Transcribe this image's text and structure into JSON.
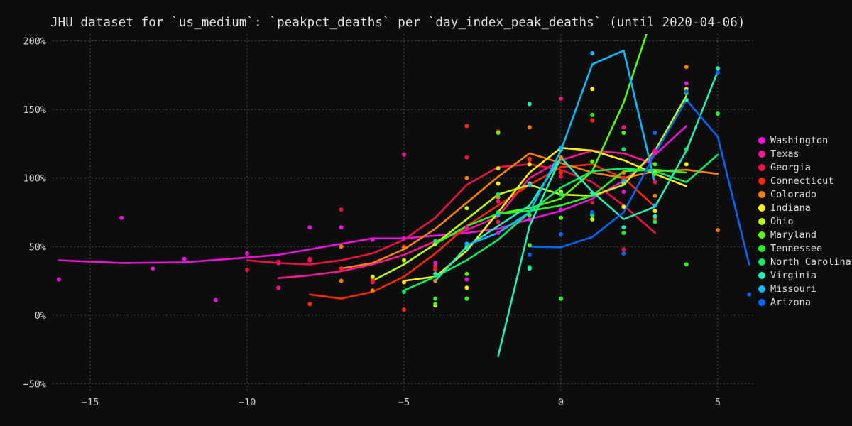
{
  "title": "JHU dataset for `us_medium`: `peakpct_deaths` per `day_index_peak_deaths` (until 2020-04-06)",
  "chart_data": {
    "type": "line",
    "title": "JHU dataset for `us_medium`: `peakpct_deaths` per `day_index_peak_deaths` (until 2020-04-06)",
    "xlabel": "",
    "ylabel": "",
    "xlim": [
      -16.2,
      6.2
    ],
    "ylim": [
      -55,
      205
    ],
    "x_ticks": [
      -15,
      -10,
      -5,
      0,
      5
    ],
    "x_tick_labels": [
      "−15",
      "−10",
      "−5",
      "0",
      "5"
    ],
    "y_ticks": [
      -50,
      0,
      50,
      100,
      150,
      200
    ],
    "y_tick_labels": [
      "−50%",
      "0%",
      "50%",
      "100%",
      "150%",
      "200%"
    ],
    "grid": true,
    "legend_position": "right",
    "series": [
      {
        "name": "Washington",
        "color": "#ee11dd",
        "line": [
          [
            -16,
            40
          ],
          [
            -14,
            38
          ],
          [
            -12,
            38.5
          ],
          [
            -10,
            42
          ],
          [
            -9,
            44
          ],
          [
            -8,
            48
          ],
          [
            -7,
            52
          ],
          [
            -6,
            56
          ],
          [
            -5,
            56
          ],
          [
            -4,
            58
          ],
          [
            -3,
            60
          ],
          [
            -2,
            63
          ],
          [
            -1,
            70
          ],
          [
            0,
            76
          ],
          [
            1,
            85
          ],
          [
            2,
            98
          ],
          [
            3,
            117
          ],
          [
            4,
            138
          ]
        ],
        "points": [
          [
            -16,
            26
          ],
          [
            -14,
            71
          ],
          [
            -13,
            34
          ],
          [
            -12,
            41
          ],
          [
            -11,
            11
          ],
          [
            -10,
            45
          ],
          [
            -9,
            38
          ],
          [
            -8,
            64
          ],
          [
            -7,
            64
          ],
          [
            -6,
            55
          ],
          [
            -5,
            56
          ],
          [
            -4,
            38
          ],
          [
            -3,
            26
          ],
          [
            -2,
            60
          ],
          [
            -1,
            70
          ],
          [
            0,
            77
          ],
          [
            1,
            75
          ],
          [
            2,
            90
          ],
          [
            3,
            118
          ],
          [
            4,
            169
          ]
        ]
      },
      {
        "name": "Texas",
        "color": "#ff1493",
        "line": [
          [
            -9,
            27
          ],
          [
            -8,
            29
          ],
          [
            -7,
            32
          ],
          [
            -6,
            37
          ],
          [
            -5,
            44
          ],
          [
            -4,
            54
          ],
          [
            -3,
            62
          ],
          [
            -2,
            72
          ],
          [
            -1,
            100
          ],
          [
            0,
            113
          ],
          [
            1,
            120
          ],
          [
            2,
            118
          ],
          [
            3,
            110
          ]
        ],
        "points": [
          [
            -9,
            20
          ],
          [
            -8,
            40
          ],
          [
            -7,
            34
          ],
          [
            -6,
            24
          ],
          [
            -5,
            117
          ],
          [
            -4,
            36
          ],
          [
            -3,
            64
          ],
          [
            -2,
            83
          ],
          [
            -1,
            96
          ],
          [
            0,
            158
          ],
          [
            1,
            74
          ],
          [
            2,
            137
          ],
          [
            3,
            120
          ]
        ]
      },
      {
        "name": "Georgia",
        "color": "#ee1144",
        "line": [
          [
            -10,
            40
          ],
          [
            -9,
            38
          ],
          [
            -8,
            37
          ],
          [
            -7,
            40
          ],
          [
            -6,
            45
          ],
          [
            -5,
            55
          ],
          [
            -4,
            71
          ],
          [
            -3,
            95
          ],
          [
            -2,
            108
          ],
          [
            -1,
            110
          ],
          [
            0,
            106
          ],
          [
            1,
            97
          ],
          [
            2,
            80
          ],
          [
            3,
            60
          ]
        ],
        "points": [
          [
            -10,
            33
          ],
          [
            -9,
            39
          ],
          [
            -8,
            41
          ],
          [
            -7,
            77
          ],
          [
            -6,
            25
          ],
          [
            -5,
            50
          ],
          [
            -4,
            33
          ],
          [
            -3,
            115
          ],
          [
            -2,
            68
          ],
          [
            -1,
            113
          ],
          [
            0,
            101
          ],
          [
            1,
            82
          ],
          [
            2,
            48
          ],
          [
            3,
            97
          ]
        ]
      },
      {
        "name": "Connecticut",
        "color": "#ff2800",
        "line": [
          [
            -8,
            15
          ],
          [
            -7,
            12
          ],
          [
            -6,
            17
          ],
          [
            -5,
            28
          ],
          [
            -4,
            45
          ],
          [
            -3,
            65
          ],
          [
            -2,
            80
          ],
          [
            -1,
            95
          ],
          [
            0,
            108
          ],
          [
            1,
            110
          ],
          [
            2,
            100
          ],
          [
            3,
            79
          ]
        ],
        "points": [
          [
            -8,
            8
          ],
          [
            -7,
            34
          ],
          [
            -6,
            26
          ],
          [
            -5,
            4
          ],
          [
            -4,
            34
          ],
          [
            -3,
            138
          ],
          [
            -2,
            134
          ],
          [
            -1,
            114
          ],
          [
            0,
            104
          ],
          [
            1,
            142
          ],
          [
            2,
            100
          ],
          [
            3,
            70
          ]
        ]
      },
      {
        "name": "Colorado",
        "color": "#ff8000",
        "line": [
          [
            -7,
            34
          ],
          [
            -6,
            38
          ],
          [
            -5,
            48
          ],
          [
            -4,
            63
          ],
          [
            -3,
            82
          ],
          [
            -2,
            101
          ],
          [
            -1,
            118
          ],
          [
            0,
            111
          ],
          [
            1,
            104
          ],
          [
            2,
            100
          ],
          [
            3,
            105
          ],
          [
            4,
            106
          ],
          [
            5,
            103
          ]
        ],
        "points": [
          [
            -7,
            50
          ],
          [
            -7,
            25
          ],
          [
            -6,
            18
          ],
          [
            -5,
            49
          ],
          [
            -4,
            25
          ],
          [
            -3,
            100
          ],
          [
            -2,
            86
          ],
          [
            -1,
            137
          ],
          [
            0,
            115
          ],
          [
            1,
            70
          ],
          [
            2,
            104
          ],
          [
            3,
            87
          ],
          [
            4,
            181
          ],
          [
            5,
            62
          ]
        ]
      },
      {
        "name": "Indiana",
        "color": "#ffee00",
        "line": [
          [
            -5,
            25
          ],
          [
            -4,
            28
          ],
          [
            -3,
            47
          ],
          [
            -2,
            75
          ],
          [
            -1,
            104
          ],
          [
            0,
            122
          ],
          [
            1,
            120
          ],
          [
            2,
            113
          ],
          [
            3,
            103
          ],
          [
            4,
            94
          ]
        ],
        "points": [
          [
            -5,
            24
          ],
          [
            -4,
            7
          ],
          [
            -3,
            20
          ],
          [
            -2,
            96
          ],
          [
            -1,
            110
          ],
          [
            0,
            89
          ],
          [
            1,
            165
          ],
          [
            2,
            79
          ],
          [
            3,
            76
          ],
          [
            4,
            110
          ]
        ]
      },
      {
        "name": "Ohio",
        "color": "#c0ff00",
        "line": [
          [
            -6,
            25
          ],
          [
            -5,
            37
          ],
          [
            -4,
            52
          ],
          [
            -3,
            70
          ],
          [
            -2,
            88
          ],
          [
            -1,
            95
          ],
          [
            0,
            88
          ],
          [
            1,
            87
          ],
          [
            2,
            95
          ],
          [
            3,
            120
          ],
          [
            4,
            160
          ]
        ],
        "points": [
          [
            -6,
            28
          ],
          [
            -5,
            40
          ],
          [
            -4,
            52
          ],
          [
            -3,
            78
          ],
          [
            -2,
            107
          ],
          [
            -1,
            96
          ],
          [
            0,
            90
          ],
          [
            1,
            70
          ],
          [
            2,
            96
          ],
          [
            3,
            104
          ],
          [
            4,
            165
          ]
        ]
      },
      {
        "name": "Maryland",
        "color": "#55ff00",
        "line": [
          [
            -2,
            74
          ],
          [
            -1,
            78
          ],
          [
            0,
            85
          ],
          [
            1,
            105
          ],
          [
            2,
            155
          ],
          [
            2.8,
            210
          ]
        ],
        "points": [
          [
            -4,
            8
          ],
          [
            -3,
            30
          ],
          [
            -2,
            133
          ],
          [
            -1,
            51
          ],
          [
            0,
            71
          ],
          [
            1,
            112
          ],
          [
            2,
            133
          ],
          [
            3,
            110
          ],
          [
            4,
            162
          ]
        ]
      },
      {
        "name": "Tennessee",
        "color": "#22ff22",
        "line": [
          [
            -4,
            52
          ],
          [
            -3,
            65
          ],
          [
            -2,
            74
          ],
          [
            -1,
            76
          ],
          [
            0,
            80
          ],
          [
            1,
            87
          ],
          [
            2,
            105
          ],
          [
            3,
            106
          ],
          [
            4,
            104
          ]
        ],
        "points": [
          [
            -4,
            12
          ],
          [
            -3,
            12
          ],
          [
            -2,
            75
          ],
          [
            -1,
            73
          ],
          [
            0,
            12
          ],
          [
            1,
            146
          ],
          [
            2,
            60
          ],
          [
            3,
            103
          ],
          [
            4,
            37
          ],
          [
            5,
            147
          ]
        ]
      },
      {
        "name": "North Carolina",
        "color": "#00ee66",
        "line": [
          [
            -5,
            18
          ],
          [
            -4,
            28
          ],
          [
            -3,
            40
          ],
          [
            -2,
            55
          ],
          [
            -1,
            75
          ],
          [
            0,
            93
          ],
          [
            1,
            105
          ],
          [
            2,
            107
          ],
          [
            3,
            105
          ],
          [
            4,
            97
          ],
          [
            5,
            117
          ]
        ],
        "points": [
          [
            -5,
            17
          ],
          [
            -4,
            54
          ],
          [
            -3,
            50
          ],
          [
            -2,
            88
          ],
          [
            -1,
            35
          ],
          [
            0,
            88
          ],
          [
            1,
            73
          ],
          [
            2,
            121
          ],
          [
            3,
            68
          ],
          [
            4,
            121
          ]
        ]
      },
      {
        "name": "Virginia",
        "color": "#22eebb",
        "line": [
          [
            -4,
            25
          ],
          [
            -3,
            50
          ],
          [
            -2,
            65
          ],
          [
            -1,
            80
          ],
          [
            0,
            115
          ],
          [
            1,
            90
          ],
          [
            2,
            70
          ],
          [
            3,
            79
          ],
          [
            4,
            120
          ],
          [
            5,
            178
          ]
        ],
        "points": [
          [
            -4,
            30
          ],
          [
            -3,
            49
          ],
          [
            -1,
            154
          ],
          [
            -1,
            34
          ],
          [
            0,
            121
          ],
          [
            1,
            89
          ],
          [
            2,
            64
          ],
          [
            3,
            72
          ],
          [
            4,
            157
          ],
          [
            5,
            180
          ]
        ]
      },
      {
        "name": "Missouri",
        "color": "#00bbff",
        "line": [
          [
            -3,
            51
          ],
          [
            -2,
            60
          ],
          [
            -1,
            75
          ],
          [
            0,
            120
          ],
          [
            1,
            183
          ],
          [
            2,
            193
          ],
          [
            3,
            96
          ]
        ],
        "points": [
          [
            -3,
            52
          ],
          [
            -2,
            73
          ],
          [
            -1,
            95
          ],
          [
            0,
            122
          ],
          [
            1,
            191
          ],
          [
            2,
            98
          ],
          [
            3,
            80
          ]
        ]
      },
      {
        "name": "Arizona",
        "color": "#0066ff",
        "line": [
          [
            -1,
            50
          ],
          [
            0,
            49.5
          ],
          [
            1,
            57
          ],
          [
            2,
            75
          ],
          [
            3,
            118
          ],
          [
            4,
            157
          ],
          [
            5,
            130
          ],
          [
            6,
            37
          ]
        ],
        "points": [
          [
            -1,
            44
          ],
          [
            0,
            59
          ],
          [
            1,
            75
          ],
          [
            2,
            45
          ],
          [
            3,
            133
          ],
          [
            4,
            163
          ],
          [
            5,
            177
          ],
          [
            6,
            15
          ]
        ]
      }
    ],
    "extra_lines": [
      {
        "name": "North Carolina",
        "color": "#22eebb",
        "line": [
          [
            -2,
            -30
          ],
          [
            -1,
            65
          ],
          [
            0,
            115
          ]
        ]
      }
    ]
  }
}
